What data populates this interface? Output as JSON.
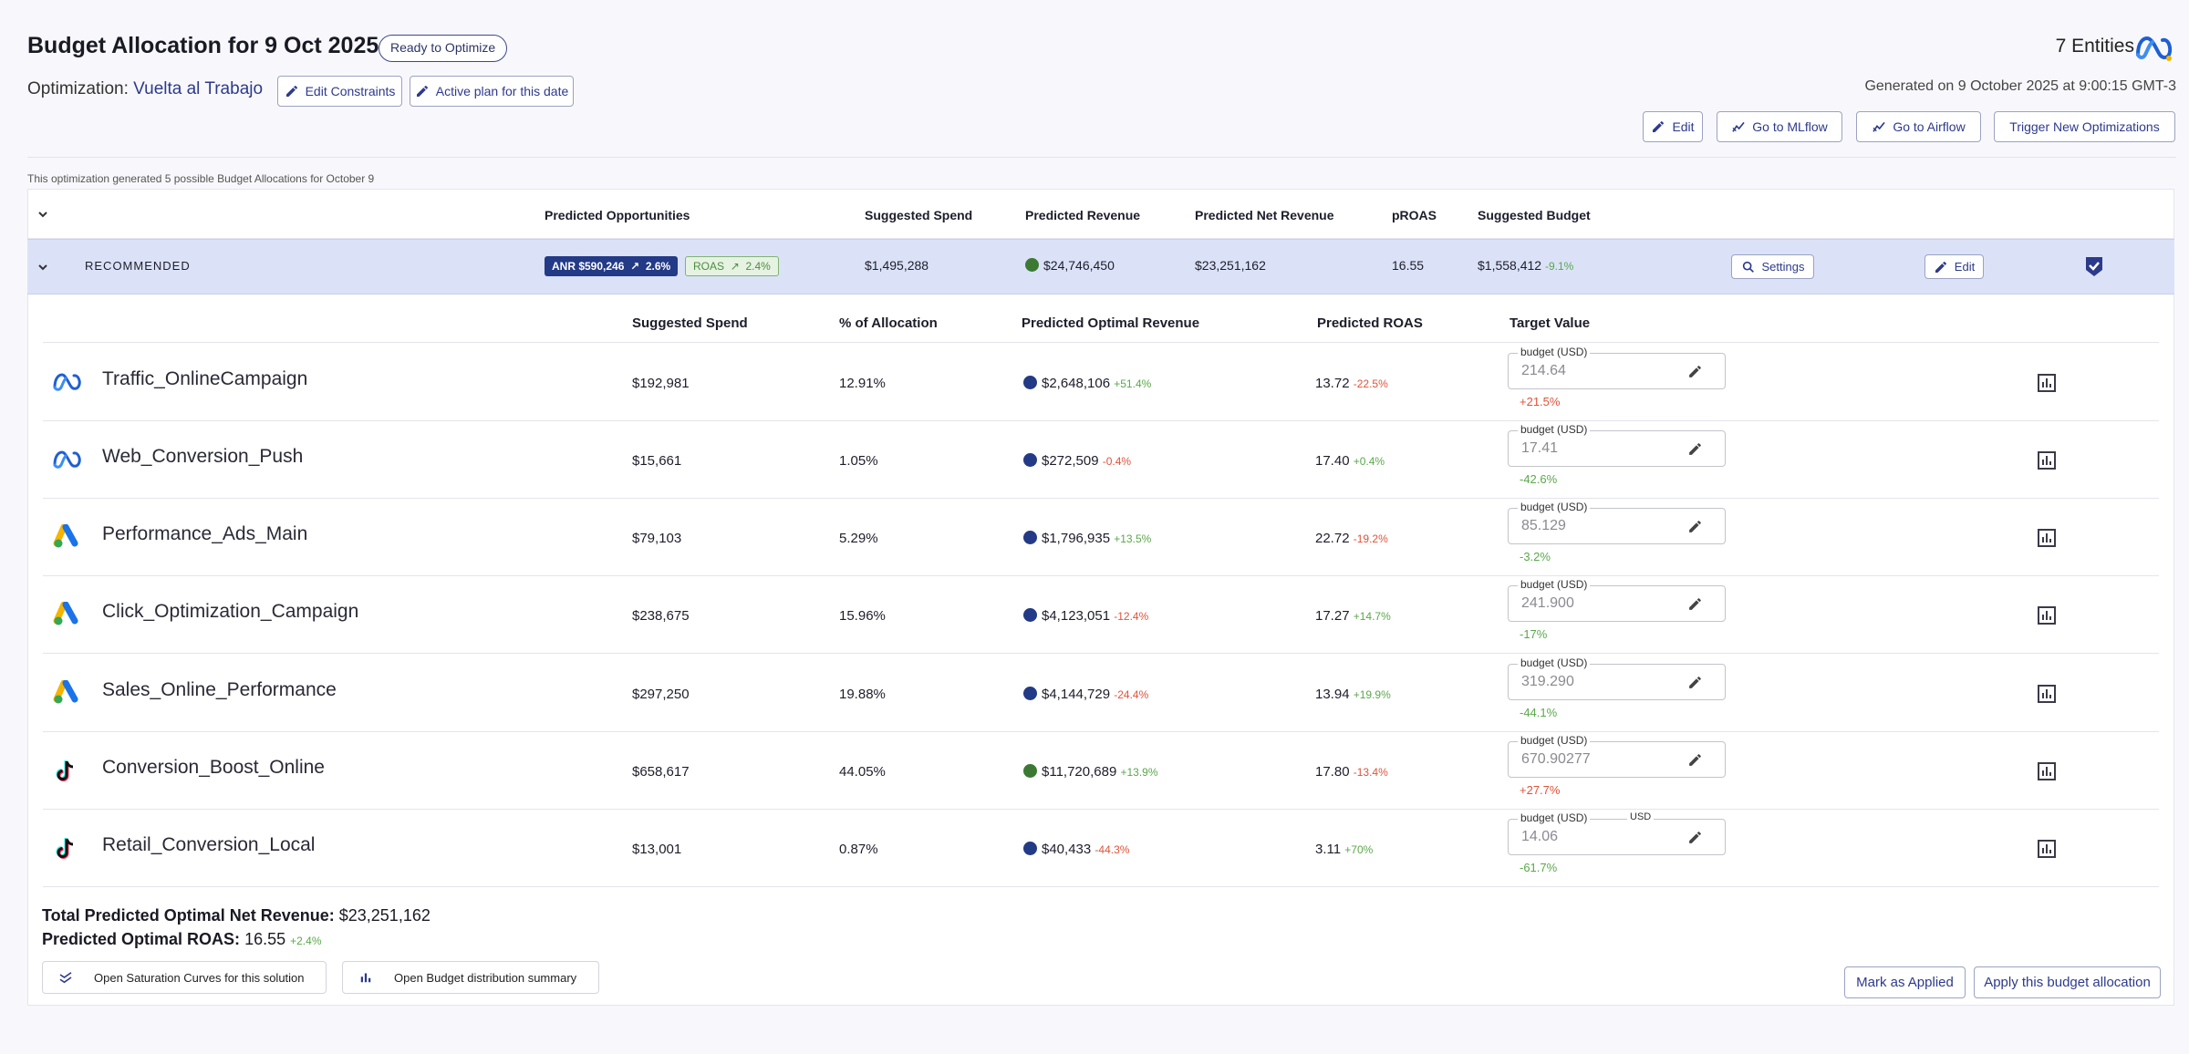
{
  "header": {
    "title": "Budget Allocation for 9 Oct 2025",
    "status_pill": "Ready to Optimize",
    "optimization_label": "Optimization:",
    "optimization_name": "Vuelta al Trabajo",
    "edit_constraints": "Edit Constraints",
    "active_plan": "Active plan for this date",
    "entities": "7 Entities",
    "generated": "Generated on 9 October 2025 at 9:00:15 GMT-3"
  },
  "toolbar": {
    "edit": "Edit",
    "mlflow": "Go to MLflow",
    "airflow": "Go to Airflow",
    "trigger": "Trigger New Optimizations"
  },
  "note": "This optimization generated 5 possible Budget Allocations for October 9",
  "summary_headers": {
    "opportunities": "Predicted Opportunities",
    "spend": "Suggested Spend",
    "revenue": "Predicted Revenue",
    "net_revenue": "Predicted Net Revenue",
    "proas": "pROAS",
    "budget": "Suggested Budget"
  },
  "recommended": {
    "label": "RECOMMENDED",
    "anr_badge": "ANR $590,246",
    "anr_delta": "2.6%",
    "roas_badge": "ROAS",
    "roas_delta": "2.4%",
    "spend": "$1,495,288",
    "revenue": "$24,746,450",
    "net_revenue": "$23,251,162",
    "proas": "16.55",
    "budget": "$1,558,412",
    "budget_delta": "-9.1%",
    "settings": "Settings",
    "edit": "Edit"
  },
  "campaign_headers": {
    "spend": "Suggested Spend",
    "allocation": "% of Allocation",
    "optimal_revenue": "Predicted Optimal Revenue",
    "roas": "Predicted ROAS",
    "target": "Target Value"
  },
  "colors": {
    "accent": "#2d3a8c",
    "rec_bg": "#dbe2f8",
    "dot_blue": "#233a86",
    "dot_green": "#3c7a34",
    "pos": "#5aa84a",
    "neg": "#e0533a"
  },
  "campaigns": [
    {
      "platform": "meta-icon",
      "name": "Traffic_OnlineCampaign",
      "spend": "$192,981",
      "allocation": "12.91%",
      "dot": "blue",
      "revenue": "$2,648,106",
      "revenue_delta": "+51.4%",
      "revenue_delta_color": "green",
      "roas": "13.72",
      "roas_delta": "-22.5%",
      "roas_delta_color": "red",
      "target_label": "budget (USD)",
      "target_value": "214.64",
      "target_delta": "+21.5%",
      "target_delta_color": "red"
    },
    {
      "platform": "meta-icon",
      "name": "Web_Conversion_Push",
      "spend": "$15,661",
      "allocation": "1.05%",
      "dot": "blue",
      "revenue": "$272,509",
      "revenue_delta": "-0.4%",
      "revenue_delta_color": "red",
      "roas": "17.40",
      "roas_delta": "+0.4%",
      "roas_delta_color": "green",
      "target_label": "budget (USD)",
      "target_value": "17.41",
      "target_delta": "-42.6%",
      "target_delta_color": "green"
    },
    {
      "platform": "google-ads-icon",
      "name": "Performance_Ads_Main",
      "spend": "$79,103",
      "allocation": "5.29%",
      "dot": "blue",
      "revenue": "$1,796,935",
      "revenue_delta": "+13.5%",
      "revenue_delta_color": "green",
      "roas": "22.72",
      "roas_delta": "-19.2%",
      "roas_delta_color": "red",
      "target_label": "budget (USD)",
      "target_value": "85.129",
      "target_delta": "-3.2%",
      "target_delta_color": "green"
    },
    {
      "platform": "google-ads-icon",
      "name": "Click_Optimization_Campaign",
      "spend": "$238,675",
      "allocation": "15.96%",
      "dot": "blue",
      "revenue": "$4,123,051",
      "revenue_delta": "-12.4%",
      "revenue_delta_color": "red",
      "roas": "17.27",
      "roas_delta": "+14.7%",
      "roas_delta_color": "green",
      "target_label": "budget (USD)",
      "target_value": "241.900",
      "target_delta": "-17%",
      "target_delta_color": "green"
    },
    {
      "platform": "google-ads-icon",
      "name": "Sales_Online_Performance",
      "spend": "$297,250",
      "allocation": "19.88%",
      "dot": "blue",
      "revenue": "$4,144,729",
      "revenue_delta": "-24.4%",
      "revenue_delta_color": "red",
      "roas": "13.94",
      "roas_delta": "+19.9%",
      "roas_delta_color": "green",
      "target_label": "budget (USD)",
      "target_value": "319.290",
      "target_delta": "-44.1%",
      "target_delta_color": "green"
    },
    {
      "platform": "tiktok-icon",
      "name": "Conversion_Boost_Online",
      "spend": "$658,617",
      "allocation": "44.05%",
      "dot": "green",
      "revenue": "$11,720,689",
      "revenue_delta": "+13.9%",
      "revenue_delta_color": "green",
      "roas": "17.80",
      "roas_delta": "-13.4%",
      "roas_delta_color": "red",
      "target_label": "budget (USD)",
      "target_value": "670.90277",
      "target_delta": "+27.7%",
      "target_delta_color": "red"
    },
    {
      "platform": "tiktok-icon",
      "name": "Retail_Conversion_Local",
      "spend": "$13,001",
      "allocation": "0.87%",
      "dot": "blue",
      "revenue": "$40,433",
      "revenue_delta": "-44.3%",
      "revenue_delta_color": "red",
      "roas": "3.11",
      "roas_delta": "+70%",
      "roas_delta_color": "green",
      "target_label": "budget (USD)",
      "target_unit": "USD",
      "target_value": "14.06",
      "target_delta": "-61.7%",
      "target_delta_color": "green"
    }
  ],
  "totals": {
    "net_revenue_label": "Total Predicted Optimal Net Revenue:",
    "net_revenue": "$23,251,162",
    "roas_label": "Predicted Optimal ROAS:",
    "roas": "16.55",
    "roas_delta": "+2.4%"
  },
  "footer": {
    "saturation": "Open Saturation Curves for this solution",
    "distribution": "Open Budget distribution summary",
    "mark_applied": "Mark as Applied",
    "apply": "Apply this budget allocation"
  }
}
